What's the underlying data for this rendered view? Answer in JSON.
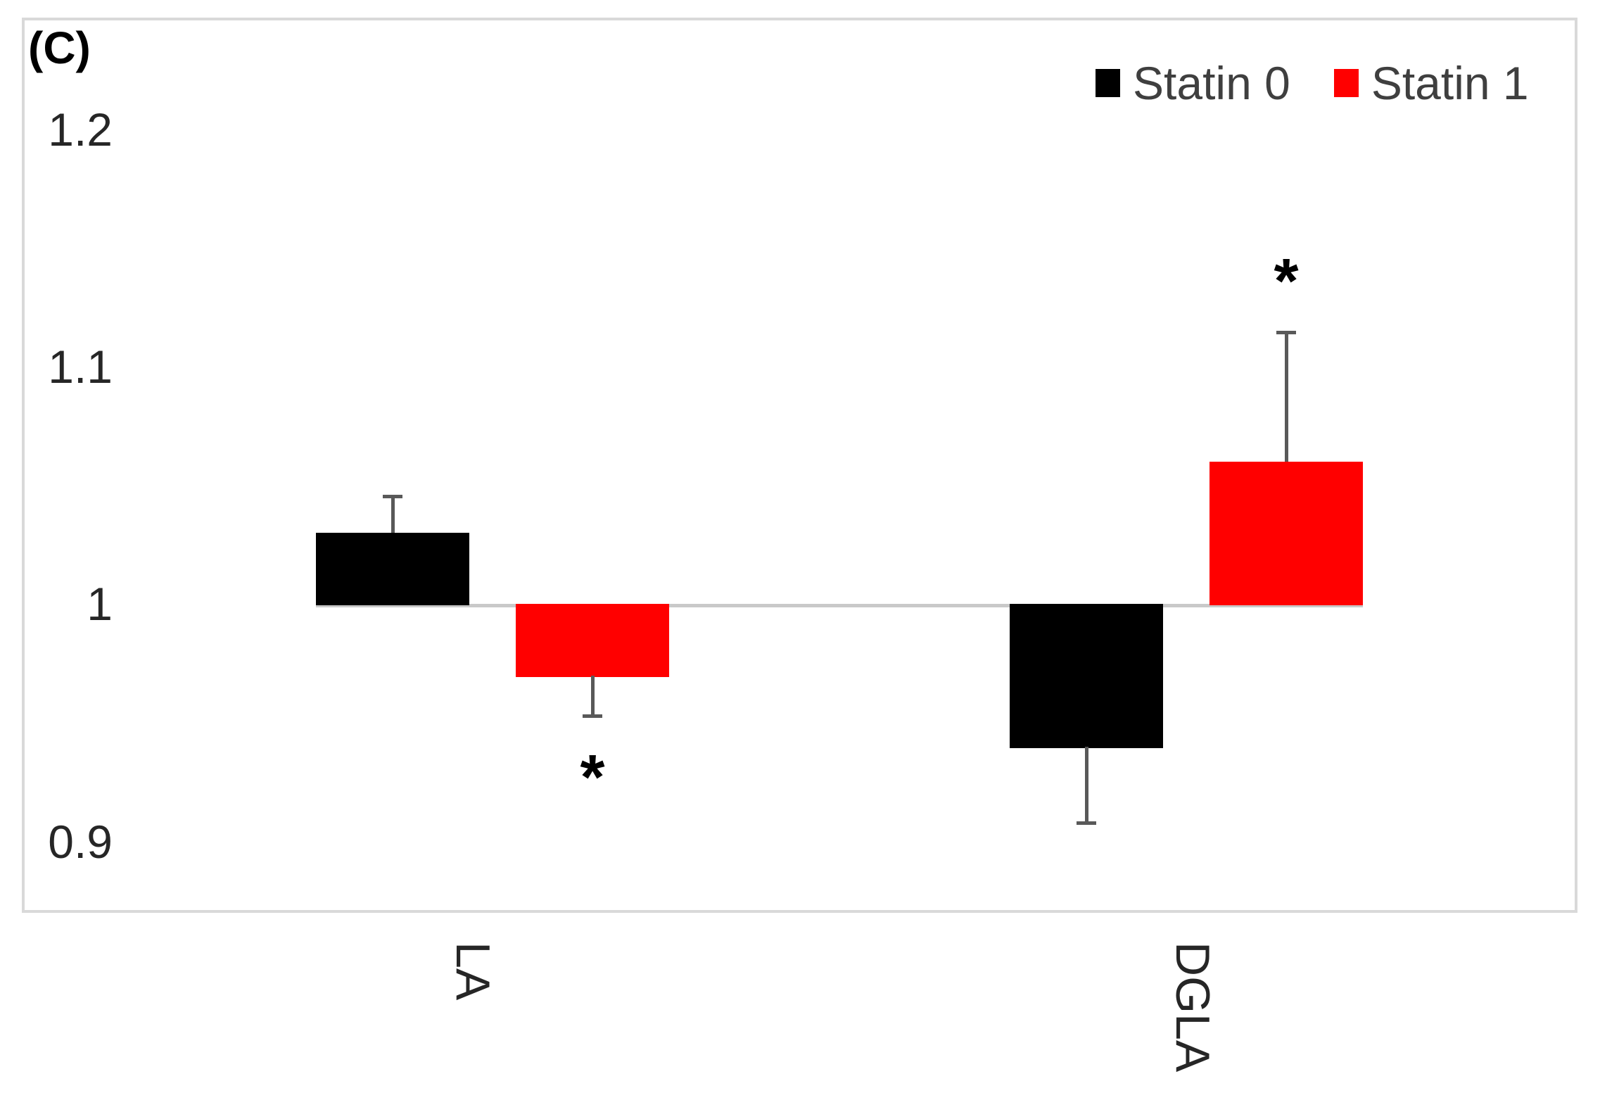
{
  "panel_label": "(C)",
  "legend": {
    "items": [
      {
        "label": "Statin 0",
        "color": "#000000"
      },
      {
        "label": "Statin 1",
        "color": "#ff0000"
      }
    ],
    "position": "top-right"
  },
  "colors": {
    "bar_statin0": "#000000",
    "bar_statin1": "#ff0000",
    "error_bar": "#595959",
    "baseline": "#c9c9c9",
    "plot_border": "#d9d9d9",
    "legend_text": "#3f3f3f",
    "tick_text": "#262626",
    "significance_marker": "#000000"
  },
  "chart_data": {
    "type": "bar",
    "title": "(C)",
    "categories": [
      "LA",
      "DGLA"
    ],
    "series": [
      {
        "name": "Statin 0",
        "color": "#000000",
        "values": [
          1.03,
          0.94
        ],
        "errors": [
          0.016,
          0.033
        ],
        "error_direction": [
          "up",
          "down"
        ],
        "significant": [
          false,
          false
        ]
      },
      {
        "name": "Statin 1",
        "color": "#ff0000",
        "values": [
          0.97,
          1.06
        ],
        "errors": [
          0.018,
          0.055
        ],
        "error_direction": [
          "down",
          "up"
        ],
        "significant": [
          true,
          true
        ]
      }
    ],
    "baseline_value": 1,
    "ytick_labels": [
      "0.9",
      "1",
      "1.1",
      "1.2"
    ],
    "ytick_values": [
      0.9,
      1,
      1.1,
      1.2
    ],
    "ylim": [
      0.87,
      1.247
    ],
    "xlabel": "",
    "ylabel": "",
    "grid": false,
    "legend_position": "top-right",
    "significance_marker": "*"
  }
}
